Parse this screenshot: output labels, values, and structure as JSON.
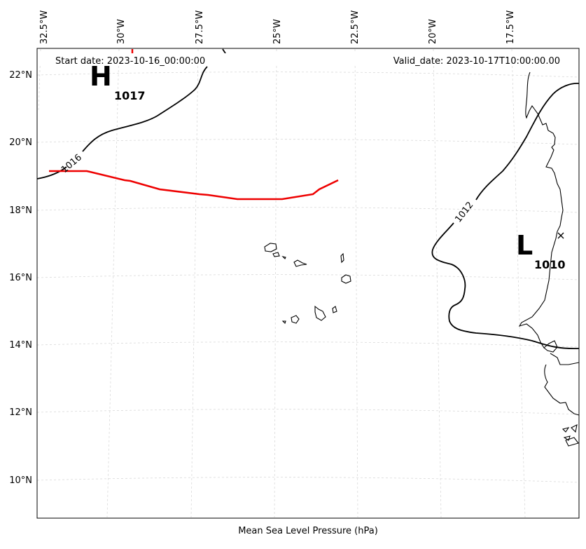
{
  "map": {
    "start_date": "Start date: 2023-10-16_00:00:00",
    "valid_date": "Valid_date: 2023-10-17T10:00:00.00",
    "caption": "Mean Sea Level Pressure (hPa)",
    "lon_labels": [
      "32.5°W",
      "30°W",
      "27.5°W",
      "25°W",
      "22.5°W",
      "20°W",
      "17.5°W"
    ],
    "lat_labels": [
      "22°N",
      "20°N",
      "18°N",
      "16°N",
      "14°N",
      "12°N",
      "10°N"
    ],
    "pressure_centers": [
      {
        "type": "H",
        "value": "1017"
      },
      {
        "type": "L",
        "value": "1010"
      }
    ],
    "isobar_labels": [
      "1016",
      "1012"
    ],
    "colors": {
      "track": "#ee0000",
      "isobar": "#000000",
      "grid": "#cccccc",
      "coast": "#000000"
    }
  }
}
